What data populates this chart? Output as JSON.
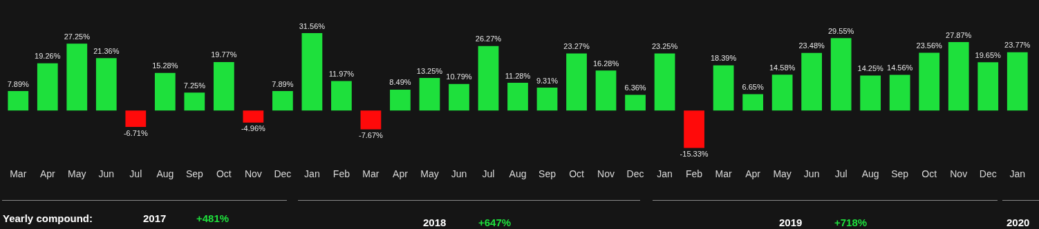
{
  "chart_data": {
    "type": "bar",
    "categories": [
      "Mar",
      "Apr",
      "May",
      "Jun",
      "Jul",
      "Aug",
      "Sep",
      "Oct",
      "Nov",
      "Dec",
      "Jan",
      "Feb",
      "Mar",
      "Apr",
      "May",
      "Jun",
      "Jul",
      "Aug",
      "Sep",
      "Oct",
      "Nov",
      "Dec",
      "Jan",
      "Feb",
      "Mar",
      "Apr",
      "May",
      "Jun",
      "Jul",
      "Aug",
      "Sep",
      "Oct",
      "Nov",
      "Dec",
      "Jan"
    ],
    "values": [
      7.89,
      19.26,
      27.25,
      21.36,
      -6.71,
      15.28,
      7.25,
      19.77,
      -4.96,
      7.89,
      31.56,
      11.97,
      -7.67,
      8.49,
      13.25,
      10.79,
      26.27,
      11.28,
      9.31,
      23.27,
      16.28,
      6.36,
      23.25,
      -15.33,
      18.39,
      6.65,
      14.58,
      23.48,
      29.55,
      14.25,
      14.56,
      23.56,
      27.87,
      19.65,
      23.77
    ],
    "value_labels": [
      "7.89%",
      "19.26%",
      "27.25%",
      "21.36%",
      "-6.71%",
      "15.28%",
      "7.25%",
      "19.77%",
      "-4.96%",
      "7.89%",
      "31.56%",
      "11.97%",
      "-7.67%",
      "8.49%",
      "13.25%",
      "10.79%",
      "26.27%",
      "11.28%",
      "9.31%",
      "23.27%",
      "16.28%",
      "6.36%",
      "23.25%",
      "-15.33%",
      "18.39%",
      "6.65%",
      "14.58%",
      "23.48%",
      "29.55%",
      "14.25%",
      "14.56%",
      "23.56%",
      "27.87%",
      "19.65%",
      "23.77%"
    ],
    "colors": [
      "#1ee03c",
      "#1ee03c",
      "#1ee03c",
      "#1ee03c",
      "#ff0a0a",
      "#1ee03c",
      "#1ee03c",
      "#1ee03c",
      "#ff0a0a",
      "#1ee03c",
      "#1ee03c",
      "#1ee03c",
      "#ff0a0a",
      "#1ee03c",
      "#1ee03c",
      "#1ee03c",
      "#1ee03c",
      "#1ee03c",
      "#1ee03c",
      "#1ee03c",
      "#1ee03c",
      "#1ee03c",
      "#1ee03c",
      "#ff0a0a",
      "#1ee03c",
      "#1ee03c",
      "#1ee03c",
      "#1ee03c",
      "#1ee03c",
      "#1ee03c",
      "#1ee03c",
      "#1ee03c",
      "#1ee03c",
      "#1ee03c",
      "#1ee03c"
    ],
    "annotations": [
      "Yearly compound:",
      "2017",
      "+481%",
      "2018",
      "+647%",
      "2019",
      "+718%",
      "2020"
    ]
  }
}
